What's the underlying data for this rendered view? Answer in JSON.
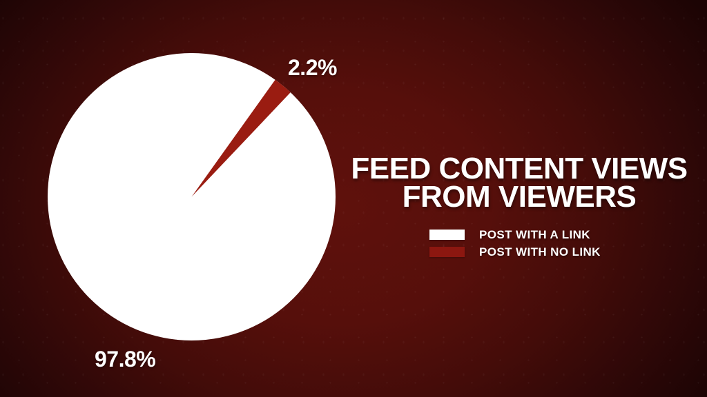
{
  "title": {
    "line1": "FEED CONTENT VIEWS",
    "line2": "FROM VIEWERS"
  },
  "chart_data": {
    "type": "pie",
    "title": "FEED CONTENT VIEWS FROM VIEWERS",
    "slices": [
      {
        "label": "POST WITH A LINK",
        "value": 97.8,
        "display": "97.8%",
        "color": "#ffffff"
      },
      {
        "label": "POST WITH NO LINK",
        "value": 2.2,
        "display": "2.2%",
        "color": "#9a1c11"
      }
    ],
    "red_slice_start_deg": 35.5,
    "red_slice_span_deg": 7.92,
    "legend": [
      {
        "label": "POST WITH A LINK",
        "swatch_color": "#ffffff"
      },
      {
        "label": "POST WITH NO LINK",
        "swatch_color": "#8c1710"
      }
    ],
    "legend_position": "right side, below title",
    "background_colors": {
      "center": "#5f110c",
      "edge": "#1c0404"
    }
  }
}
